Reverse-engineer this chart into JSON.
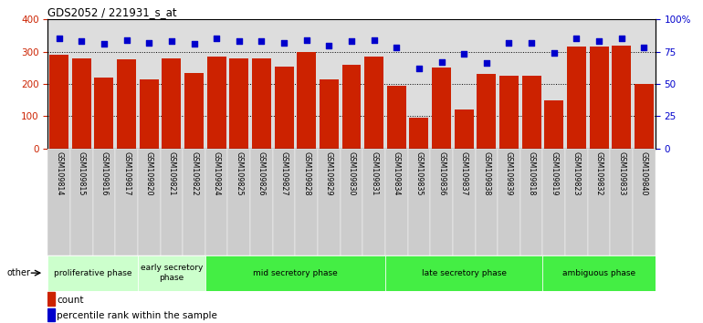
{
  "title": "GDS2052 / 221931_s_at",
  "samples": [
    "GSM109814",
    "GSM109815",
    "GSM109816",
    "GSM109817",
    "GSM109820",
    "GSM109821",
    "GSM109822",
    "GSM109824",
    "GSM109825",
    "GSM109826",
    "GSM109827",
    "GSM109828",
    "GSM109829",
    "GSM109830",
    "GSM109831",
    "GSM109834",
    "GSM109835",
    "GSM109836",
    "GSM109837",
    "GSM109838",
    "GSM109839",
    "GSM109818",
    "GSM109819",
    "GSM109823",
    "GSM109832",
    "GSM109833",
    "GSM109840"
  ],
  "counts": [
    290,
    280,
    220,
    275,
    215,
    280,
    235,
    285,
    280,
    280,
    255,
    300,
    215,
    260,
    285,
    195,
    95,
    250,
    120,
    230,
    225,
    225,
    150,
    315,
    315,
    320,
    200
  ],
  "percentiles": [
    85,
    83,
    81,
    84,
    82,
    83,
    81,
    85,
    83,
    83,
    82,
    84,
    80,
    83,
    84,
    78,
    62,
    67,
    73,
    66,
    82,
    82,
    74,
    85,
    83,
    85,
    78
  ],
  "phases": [
    {
      "name": "proliferative phase",
      "start": 0,
      "end": 4,
      "color": "#ccffcc"
    },
    {
      "name": "early secretory\nphase",
      "start": 4,
      "end": 7,
      "color": "#ccffcc"
    },
    {
      "name": "mid secretory phase",
      "start": 7,
      "end": 15,
      "color": "#44ee44"
    },
    {
      "name": "late secretory phase",
      "start": 15,
      "end": 22,
      "color": "#44ee44"
    },
    {
      "name": "ambiguous phase",
      "start": 22,
      "end": 27,
      "color": "#44ee44"
    }
  ],
  "bar_color": "#cc2200",
  "dot_color": "#0000cc",
  "ylim_left": [
    0,
    400
  ],
  "ylim_right": [
    0,
    100
  ],
  "yticks_left": [
    0,
    100,
    200,
    300,
    400
  ],
  "yticks_right": [
    0,
    25,
    50,
    75,
    100
  ],
  "ytick_labels_right": [
    "0",
    "25",
    "50",
    "75",
    "100%"
  ],
  "background_color": "#ffffff",
  "plot_bg_color": "#dddddd",
  "tick_bg_color": "#cccccc"
}
